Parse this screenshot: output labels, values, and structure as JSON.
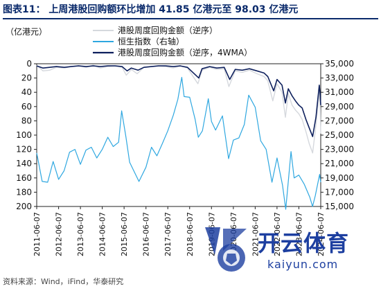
{
  "header": {
    "title": "图表11： 上周港股回购额环比增加 41.85 亿港元至 98.03 亿港元"
  },
  "footer": {
    "source": "资料来源：Wind，iFind，华泰研究"
  },
  "watermark": {
    "text": "开云体育",
    "url": "kaiyun.com"
  },
  "chart_data": {
    "type": "line",
    "left_axis": {
      "label": "（亿港元）",
      "range": [
        0,
        200
      ],
      "reversed": true,
      "ticks": [
        0,
        20,
        40,
        60,
        80,
        100,
        120,
        140,
        160,
        180,
        200
      ]
    },
    "right_axis": {
      "label": "",
      "range": [
        15000,
        35000
      ],
      "ticks": [
        "15,000",
        "17,000",
        "19,000",
        "21,000",
        "23,000",
        "25,000",
        "27,000",
        "29,000",
        "31,000",
        "33,000",
        "35,000"
      ]
    },
    "x_axis": {
      "range": [
        "2011-06-07",
        "2024-06-07"
      ],
      "ticks": [
        "2011-06-07",
        "2012-06-07",
        "2013-06-07",
        "2014-06-07",
        "2015-06-07",
        "2016-06-07",
        "2017-06-07",
        "2018-06-07",
        "2019-06-07",
        "2020-06-07",
        "2021-06-07",
        "2022-06-07",
        "2023-06-07",
        "2024-06-07"
      ]
    },
    "legend": {
      "position": "top-right",
      "entries": [
        {
          "name": "港股周度回购金额（逆序）",
          "color": "#d5d8dd"
        },
        {
          "name": "恒生指数（右轴）",
          "color": "#2ea7e0"
        },
        {
          "name": "港股周度回购金额（逆序，4WMA）",
          "color": "#0d1f5c"
        }
      ]
    },
    "series": [
      {
        "name": "恒生指数（右轴）",
        "axis": "right",
        "color": "#2ea7e0",
        "x": [
          "2011-06-07",
          "2011-09-07",
          "2011-12-07",
          "2012-03-07",
          "2012-06-07",
          "2012-09-07",
          "2012-12-07",
          "2013-03-07",
          "2013-06-07",
          "2013-09-07",
          "2013-12-07",
          "2014-03-07",
          "2014-06-07",
          "2014-09-07",
          "2014-12-07",
          "2015-03-07",
          "2015-04-27",
          "2015-07-07",
          "2015-09-07",
          "2016-02-11",
          "2016-06-07",
          "2016-09-07",
          "2016-12-07",
          "2017-03-07",
          "2017-06-07",
          "2017-09-07",
          "2017-11-22",
          "2018-01-26",
          "2018-03-07",
          "2018-06-07",
          "2018-09-07",
          "2018-10-30",
          "2019-01-07",
          "2019-04-15",
          "2019-06-07",
          "2019-08-15",
          "2019-12-07",
          "2020-03-19",
          "2020-06-07",
          "2020-09-07",
          "2020-12-07",
          "2021-02-18",
          "2021-06-07",
          "2021-09-07",
          "2021-12-07",
          "2022-03-15",
          "2022-06-07",
          "2022-09-07",
          "2022-10-31",
          "2023-01-27",
          "2023-03-20",
          "2023-06-07",
          "2023-09-07",
          "2023-12-07",
          "2024-01-22",
          "2024-03-07",
          "2024-05-20",
          "2024-06-07"
        ],
        "values": [
          22500,
          18500,
          18400,
          21300,
          18800,
          20000,
          22600,
          23000,
          20900,
          22900,
          23300,
          21800,
          23000,
          24700,
          23400,
          24000,
          28400,
          24800,
          21200,
          18500,
          20500,
          23300,
          22100,
          23800,
          25600,
          27800,
          30000,
          33100,
          30400,
          30300,
          27200,
          24700,
          25600,
          30100,
          26900,
          25700,
          27700,
          21700,
          24300,
          24600,
          26500,
          30600,
          28900,
          24200,
          23000,
          18400,
          21800,
          18000,
          14600,
          22700,
          19000,
          19400,
          18100,
          16300,
          15000,
          16500,
          19500,
          18400
        ]
      },
      {
        "name": "港股周度回购金额（逆序）",
        "axis": "left",
        "color": "#d5d8dd",
        "x": [
          "2011-06-07",
          "2011-09-20",
          "2012-01-10",
          "2012-05-01",
          "2012-09-11",
          "2013-01-01",
          "2013-05-07",
          "2013-09-10",
          "2014-01-07",
          "2014-05-06",
          "2014-09-09",
          "2015-01-06",
          "2015-05-05",
          "2015-07-14",
          "2015-10-06",
          "2016-01-12",
          "2016-05-03",
          "2016-09-06",
          "2017-01-03",
          "2017-05-02",
          "2017-09-05",
          "2018-01-02",
          "2018-05-01",
          "2018-10-23",
          "2019-01-01",
          "2019-05-07",
          "2019-09-03",
          "2020-01-07",
          "2020-03-24",
          "2020-07-07",
          "2020-11-03",
          "2021-03-02",
          "2021-07-06",
          "2021-11-02",
          "2022-01-04",
          "2022-03-29",
          "2022-06-07",
          "2022-08-30",
          "2022-10-25",
          "2022-12-13",
          "2023-02-14",
          "2023-04-11",
          "2023-06-06",
          "2023-08-01",
          "2023-10-03",
          "2023-11-28",
          "2024-01-23",
          "2024-03-19",
          "2024-05-14",
          "2024-05-28",
          "2024-06-07"
        ],
        "values": [
          2,
          10,
          9,
          5,
          6,
          4,
          3,
          5,
          2,
          6,
          4,
          3,
          5,
          16,
          8,
          14,
          5,
          4,
          3,
          4,
          6,
          3,
          6,
          28,
          9,
          5,
          8,
          7,
          32,
          10,
          12,
          9,
          14,
          18,
          24,
          52,
          28,
          40,
          75,
          42,
          58,
          65,
          70,
          78,
          95,
          112,
          125,
          86,
          40,
          56,
          98
        ]
      },
      {
        "name": "港股周度回购金额（逆序，4WMA）",
        "axis": "left",
        "color": "#0d1f5c",
        "x": [
          "2011-06-07",
          "2011-09-20",
          "2012-01-10",
          "2012-05-01",
          "2012-09-11",
          "2013-01-01",
          "2013-05-07",
          "2013-09-10",
          "2014-01-07",
          "2014-05-06",
          "2014-09-09",
          "2015-01-06",
          "2015-05-05",
          "2015-07-28",
          "2015-10-06",
          "2016-01-26",
          "2016-05-03",
          "2016-09-06",
          "2017-01-03",
          "2017-05-02",
          "2017-09-05",
          "2018-01-02",
          "2018-05-01",
          "2018-11-06",
          "2019-01-01",
          "2019-05-07",
          "2019-09-03",
          "2020-01-07",
          "2020-04-07",
          "2020-07-07",
          "2020-11-03",
          "2021-03-02",
          "2021-07-06",
          "2021-11-02",
          "2022-01-04",
          "2022-04-12",
          "2022-06-07",
          "2022-08-30",
          "2022-10-25",
          "2022-12-13",
          "2023-02-14",
          "2023-04-11",
          "2023-06-06",
          "2023-08-01",
          "2023-10-03",
          "2023-11-28",
          "2024-01-23",
          "2024-03-19",
          "2024-05-14",
          "2024-05-28",
          "2024-06-07"
        ],
        "values": [
          3,
          6,
          5,
          4,
          5,
          4,
          3,
          4,
          3,
          4,
          3,
          3,
          4,
          10,
          6,
          9,
          5,
          4,
          3,
          3,
          4,
          3,
          5,
          20,
          7,
          4,
          6,
          5,
          22,
          8,
          9,
          7,
          10,
          13,
          18,
          38,
          22,
          30,
          55,
          35,
          45,
          52,
          58,
          62,
          78,
          90,
          102,
          75,
          30,
          42,
          58
        ]
      }
    ]
  }
}
